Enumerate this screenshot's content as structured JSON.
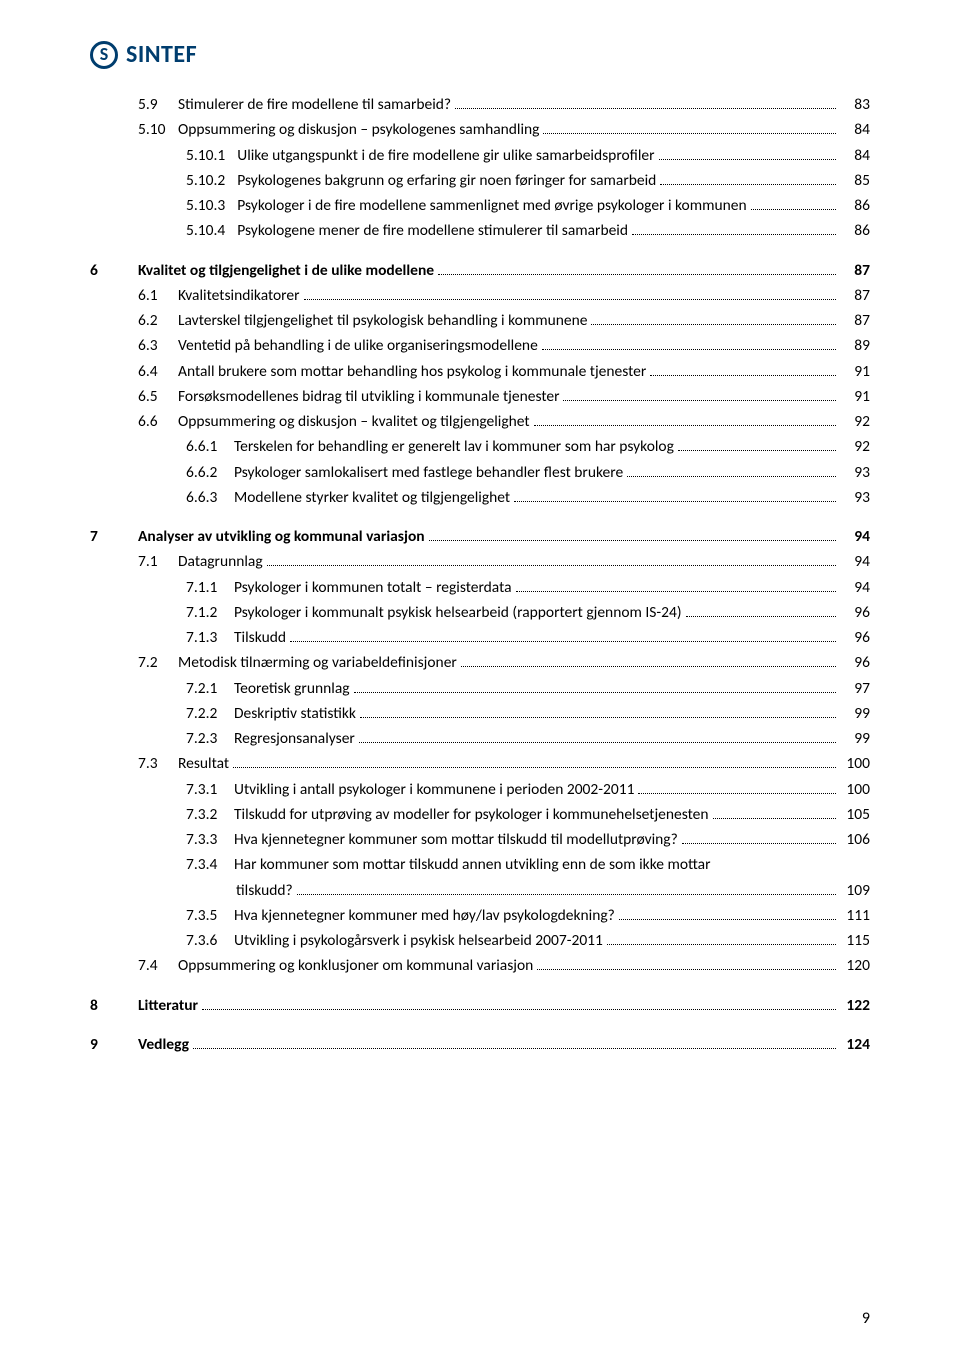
{
  "logo": {
    "brand": "SINTEF",
    "brand_color": "#003d6e"
  },
  "page_number": "9",
  "toc": [
    {
      "lvl": 2,
      "num": "5.9",
      "title": "Stimulerer de fire modellene til samarbeid?",
      "page": "83"
    },
    {
      "lvl": 2,
      "num": "5.10",
      "title": "Oppsummering og diskusjon – psykologenes samhandling",
      "page": "84"
    },
    {
      "lvl": 3,
      "num": "5.10.1",
      "title": "Ulike utgangspunkt i de fire modellene gir ulike samarbeidsprofiler",
      "page": "84"
    },
    {
      "lvl": 3,
      "num": "5.10.2",
      "title": "Psykologenes bakgrunn og erfaring gir noen føringer for samarbeid",
      "page": "85"
    },
    {
      "lvl": 3,
      "num": "5.10.3",
      "title": "Psykologer i de fire modellene sammenlignet med øvrige psykologer i kommunen",
      "page": "86"
    },
    {
      "lvl": 3,
      "num": "5.10.4",
      "title": "Psykologene mener de fire modellene stimulerer til samarbeid",
      "page": "86"
    },
    {
      "lvl": 1,
      "num": "6",
      "title": "Kvalitet og tilgjengelighet i de ulike modellene",
      "page": "87"
    },
    {
      "lvl": 2,
      "num": "6.1",
      "title": "Kvalitetsindikatorer",
      "page": "87"
    },
    {
      "lvl": 2,
      "num": "6.2",
      "title": "Lavterskel tilgjengelighet til psykologisk behandling i kommunene",
      "page": "87"
    },
    {
      "lvl": 2,
      "num": "6.3",
      "title": "Ventetid på behandling i de ulike organiseringsmodellene",
      "page": "89"
    },
    {
      "lvl": 2,
      "num": "6.4",
      "title": "Antall brukere som mottar behandling hos psykolog i kommunale tjenester",
      "page": "91"
    },
    {
      "lvl": 2,
      "num": "6.5",
      "title": "Forsøksmodellenes bidrag til utvikling i kommunale tjenester",
      "page": "91"
    },
    {
      "lvl": 2,
      "num": "6.6",
      "title": "Oppsummering og diskusjon – kvalitet og tilgjengelighet",
      "page": "92"
    },
    {
      "lvl": 3,
      "num": "6.6.1",
      "title": "Terskelen for behandling er generelt lav i kommuner som har psykolog",
      "page": "92"
    },
    {
      "lvl": 3,
      "num": "6.6.2",
      "title": "Psykologer samlokalisert med fastlege behandler flest brukere",
      "page": "93"
    },
    {
      "lvl": 3,
      "num": "6.6.3",
      "title": "Modellene styrker kvalitet og tilgjengelighet",
      "page": "93"
    },
    {
      "lvl": 1,
      "num": "7",
      "title": "Analyser av utvikling og kommunal variasjon",
      "page": "94"
    },
    {
      "lvl": 2,
      "num": "7.1",
      "title": "Datagrunnlag",
      "page": "94"
    },
    {
      "lvl": 3,
      "num": "7.1.1",
      "title": "Psykologer i kommunen totalt – registerdata",
      "page": "94"
    },
    {
      "lvl": 3,
      "num": "7.1.2",
      "title": "Psykologer i kommunalt psykisk helsearbeid (rapportert gjennom IS-24)",
      "page": "96"
    },
    {
      "lvl": 3,
      "num": "7.1.3",
      "title": "Tilskudd",
      "page": "96"
    },
    {
      "lvl": 2,
      "num": "7.2",
      "title": "Metodisk tilnærming og variabeldefinisjoner",
      "page": "96"
    },
    {
      "lvl": 3,
      "num": "7.2.1",
      "title": "Teoretisk grunnlag",
      "page": "97"
    },
    {
      "lvl": 3,
      "num": "7.2.2",
      "title": "Deskriptiv statistikk",
      "page": "99"
    },
    {
      "lvl": 3,
      "num": "7.2.3",
      "title": "Regresjonsanalyser",
      "page": "99"
    },
    {
      "lvl": 2,
      "num": "7.3",
      "title": "Resultat",
      "page": "100"
    },
    {
      "lvl": 3,
      "num": "7.3.1",
      "title": "Utvikling i antall psykologer i kommunene i perioden 2002-2011",
      "page": "100"
    },
    {
      "lvl": 3,
      "num": "7.3.2",
      "title": "Tilskudd for utprøving av modeller for psykologer i kommunehelsetjenesten",
      "page": "105"
    },
    {
      "lvl": 3,
      "num": "7.3.3",
      "title": "Hva kjennetegner kommuner som mottar tilskudd til modellutprøving?",
      "page": "106"
    },
    {
      "lvl": 3,
      "num": "7.3.4",
      "title": "Har kommuner som mottar tilskudd annen utvikling enn de som ikke mottar",
      "cont": "tilskudd?",
      "page": "109"
    },
    {
      "lvl": 3,
      "num": "7.3.5",
      "title": "Hva kjennetegner kommuner med høy/lav psykologdekning?",
      "page": "111"
    },
    {
      "lvl": 3,
      "num": "7.3.6",
      "title": "Utvikling i psykologårsverk i psykisk helsearbeid 2007-2011",
      "page": "115"
    },
    {
      "lvl": 2,
      "num": "7.4",
      "title": "Oppsummering og konklusjoner om kommunal variasjon",
      "page": "120"
    },
    {
      "lvl": 1,
      "num": "8",
      "title": "Litteratur",
      "page": "122"
    },
    {
      "lvl": 1,
      "num": "9",
      "title": "Vedlegg",
      "page": "124"
    }
  ]
}
